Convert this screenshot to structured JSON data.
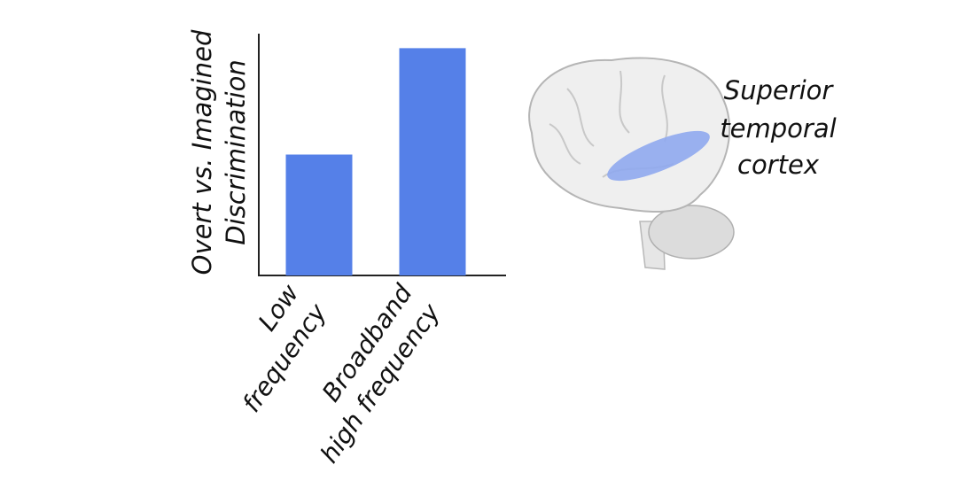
{
  "chart_data": {
    "type": "bar",
    "ylabel": [
      "Overt vs. Imagined",
      "Discrimination"
    ],
    "categories": [
      [
        "Low",
        "frequency"
      ],
      [
        "Broadband",
        "high frequency"
      ]
    ],
    "values": [
      0.5,
      0.94
    ],
    "color": "#5580e8",
    "ylim": [
      0,
      1
    ],
    "annotation": [
      "Superior",
      "temporal",
      "cortex"
    ]
  }
}
